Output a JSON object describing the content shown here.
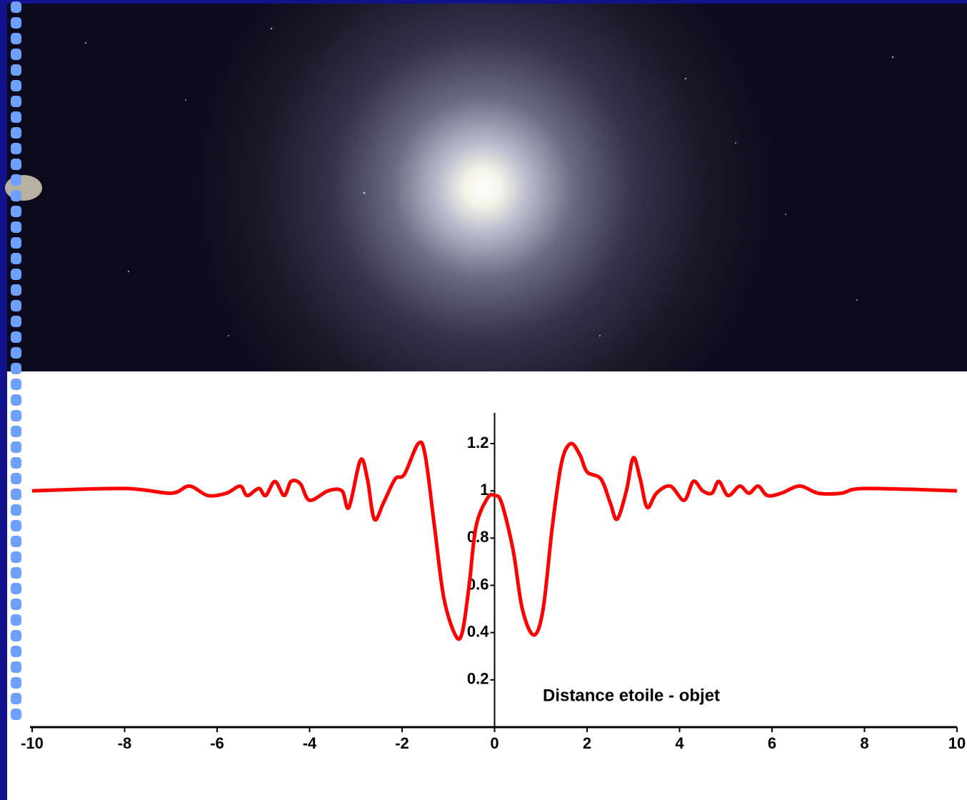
{
  "chart_data": {
    "type": "line",
    "annotation": "Distance etoile - objet",
    "xlim": [
      -10,
      10
    ],
    "xticks": [
      -10,
      -8,
      -6,
      -4,
      -2,
      0,
      2,
      4,
      6,
      8,
      10
    ],
    "ylim": [
      0,
      1.33
    ],
    "yticks": [
      0.2,
      0.4,
      0.6,
      0.8,
      1,
      1.2
    ],
    "x": [
      -10,
      -8,
      -7,
      -6.6,
      -6.2,
      -5.8,
      -5.5,
      -5.35,
      -5.1,
      -4.95,
      -4.75,
      -4.55,
      -4.4,
      -4.2,
      -4.0,
      -3.6,
      -3.3,
      -3.15,
      -2.9,
      -2.75,
      -2.6,
      -2.4,
      -2.15,
      -1.95,
      -1.65,
      -1.5,
      -1.3,
      -1.1,
      -0.85,
      -0.7,
      -0.55,
      -0.4,
      -0.15,
      0,
      0.15,
      0.4,
      0.6,
      0.85,
      1.05,
      1.25,
      1.45,
      1.65,
      1.85,
      2.0,
      2.3,
      2.5,
      2.65,
      2.85,
      3.0,
      3.15,
      3.3,
      3.5,
      3.8,
      4.1,
      4.3,
      4.5,
      4.7,
      4.85,
      5.05,
      5.3,
      5.5,
      5.7,
      5.9,
      6.2,
      6.6,
      7.0,
      7.5,
      8,
      10
    ],
    "series": [
      {
        "color": "#ff0000",
        "values": [
          1.0,
          1.01,
          0.99,
          1.02,
          0.98,
          0.99,
          1.02,
          0.98,
          1.01,
          0.98,
          1.04,
          0.98,
          1.04,
          1.03,
          0.96,
          1.0,
          1.0,
          0.93,
          1.13,
          1.05,
          0.88,
          0.95,
          1.05,
          1.07,
          1.2,
          1.15,
          0.85,
          0.55,
          0.39,
          0.4,
          0.6,
          0.85,
          0.97,
          0.98,
          0.95,
          0.75,
          0.5,
          0.39,
          0.5,
          0.85,
          1.12,
          1.2,
          1.15,
          1.08,
          1.05,
          0.95,
          0.88,
          1.0,
          1.14,
          1.05,
          0.93,
          0.99,
          1.02,
          0.96,
          1.04,
          1.0,
          0.99,
          1.04,
          0.98,
          1.02,
          0.99,
          1.02,
          0.98,
          0.99,
          1.02,
          0.99,
          0.99,
          1.01,
          1.0
        ]
      }
    ]
  }
}
